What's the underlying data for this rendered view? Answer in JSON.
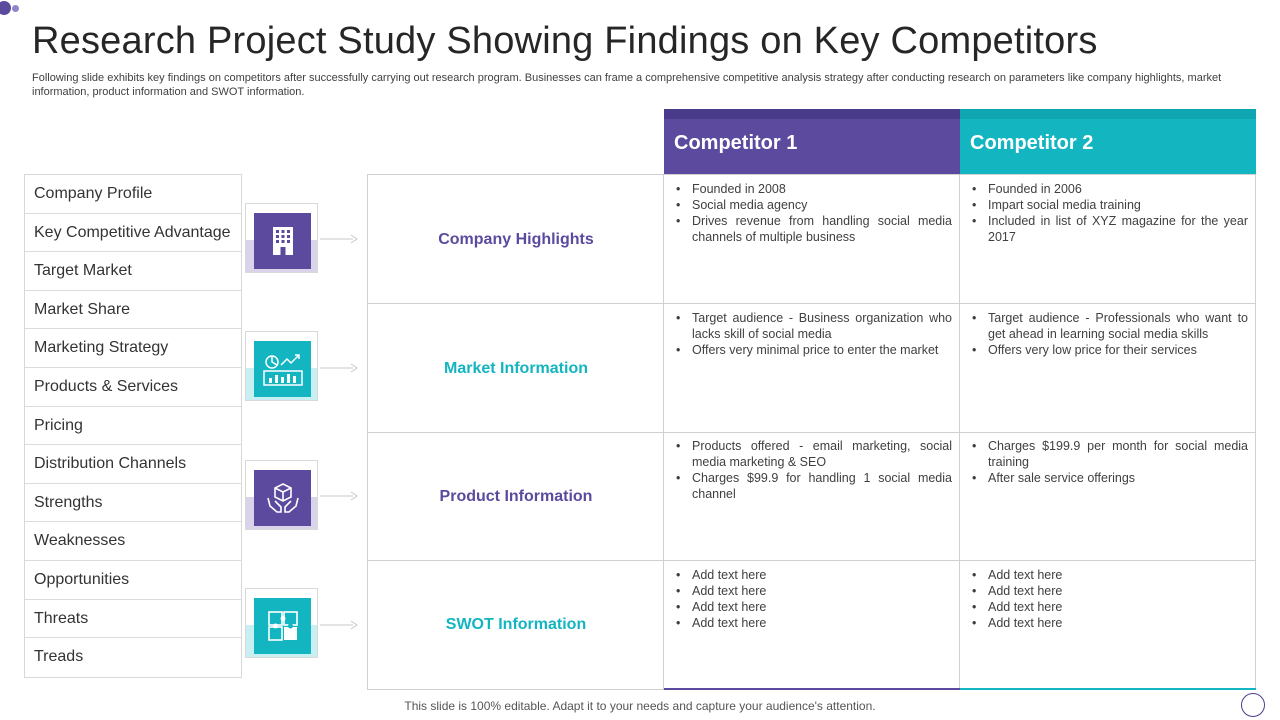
{
  "page": {
    "title": "Research Project Study Showing Findings on Key Competitors",
    "subtitle": "Following slide exhibits key findings on competitors after successfully carrying out research program. Businesses can frame a comprehensive competitive analysis strategy after conducting research on parameters like company highlights, market information, product information and SWOT information.",
    "footer": "This slide is 100% editable. Adapt it to your needs and capture your audience's attention."
  },
  "colors": {
    "purple": "#5b4a9e",
    "teal": "#13b5c1",
    "purple_light": "#d9d4ea",
    "teal_light": "#c8f0f2"
  },
  "left_list": [
    "Company Profile",
    "Key Competitive Advantage",
    "Target Market",
    "Market Share",
    "Marketing Strategy",
    "Products & Services",
    "Pricing",
    "Distribution Channels",
    "Strengths",
    "Weaknesses",
    "Opportunities",
    "Threats",
    "Treads"
  ],
  "icons": [
    "building-icon",
    "analytics-icon",
    "product-hands-icon",
    "puzzle-icon"
  ],
  "competitors": [
    "Competitor 1",
    "Competitor 2"
  ],
  "rows": [
    {
      "label": "Company Highlights",
      "c1": [
        "Founded in 2008",
        "Social media agency",
        "Drives revenue from handling social media channels of multiple business"
      ],
      "c2": [
        "Founded in 2006",
        "Impart social media training",
        "Included in list of XYZ magazine for the year 2017"
      ]
    },
    {
      "label": "Market Information",
      "c1": [
        "Target audience - Business organization who lacks skill of social media",
        "Offers very minimal price to enter the market"
      ],
      "c2": [
        "Target audience - Professionals who want to get ahead in learning social media skills",
        "Offers very low price for their services"
      ]
    },
    {
      "label": "Product Information",
      "c1": [
        "Products offered - email marketing, social media marketing & SEO",
        "Charges $99.9 for handling 1 social media channel"
      ],
      "c2": [
        "Charges $199.9 per month for social media training",
        "After sale service offerings"
      ]
    },
    {
      "label": "SWOT Information",
      "c1": [
        "Add text here",
        "Add text here",
        "Add text here",
        "Add text here"
      ],
      "c2": [
        "Add text here",
        "Add text here",
        "Add text here",
        "Add text here"
      ]
    }
  ]
}
